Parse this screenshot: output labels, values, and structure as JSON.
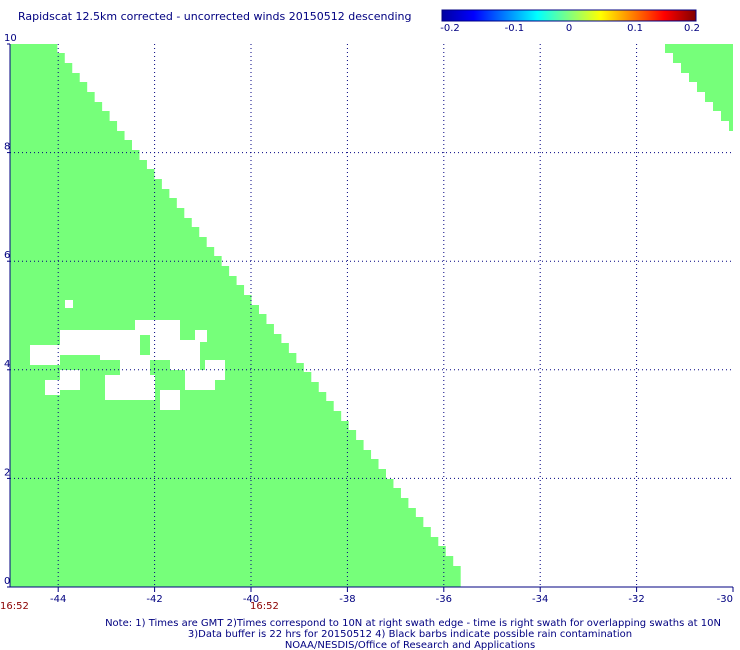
{
  "title": "Rapidscat 12.5km corrected - uncorrected winds 20150512 descending",
  "colorbar": {
    "ticks": [
      "-0.2",
      "-0.1",
      "0",
      "0.1",
      "0.2"
    ],
    "min": -0.2,
    "max": 0.2,
    "colors": [
      "#0000a0",
      "#0000ff",
      "#0080ff",
      "#00ffff",
      "#80ff80",
      "#ffff00",
      "#ff8000",
      "#ff0000",
      "#800000"
    ]
  },
  "map": {
    "lon_range": [
      -45,
      -30
    ],
    "lat_range": [
      0,
      10
    ],
    "lon_ticks": [
      "-44",
      "-42",
      "-40",
      "-38",
      "-36",
      "-34",
      "-32",
      "-30"
    ],
    "lat_ticks": [
      "0",
      "2",
      "4",
      "6",
      "8",
      "10"
    ],
    "swath_color": "#76ff7a",
    "grid_color": "#000080"
  },
  "swath_times": [
    "16:52",
    "16:52"
  ],
  "notes": [
    "Note: 1) Times are GMT 2)Times correspond to 10N at right swath edge - time is right swath for overlapping swaths at 10N",
    "3)Data buffer is 22 hrs for 20150512 4) Black barbs indicate possible rain contamination",
    "NOAA/NESDIS/Office of Research and Applications"
  ]
}
